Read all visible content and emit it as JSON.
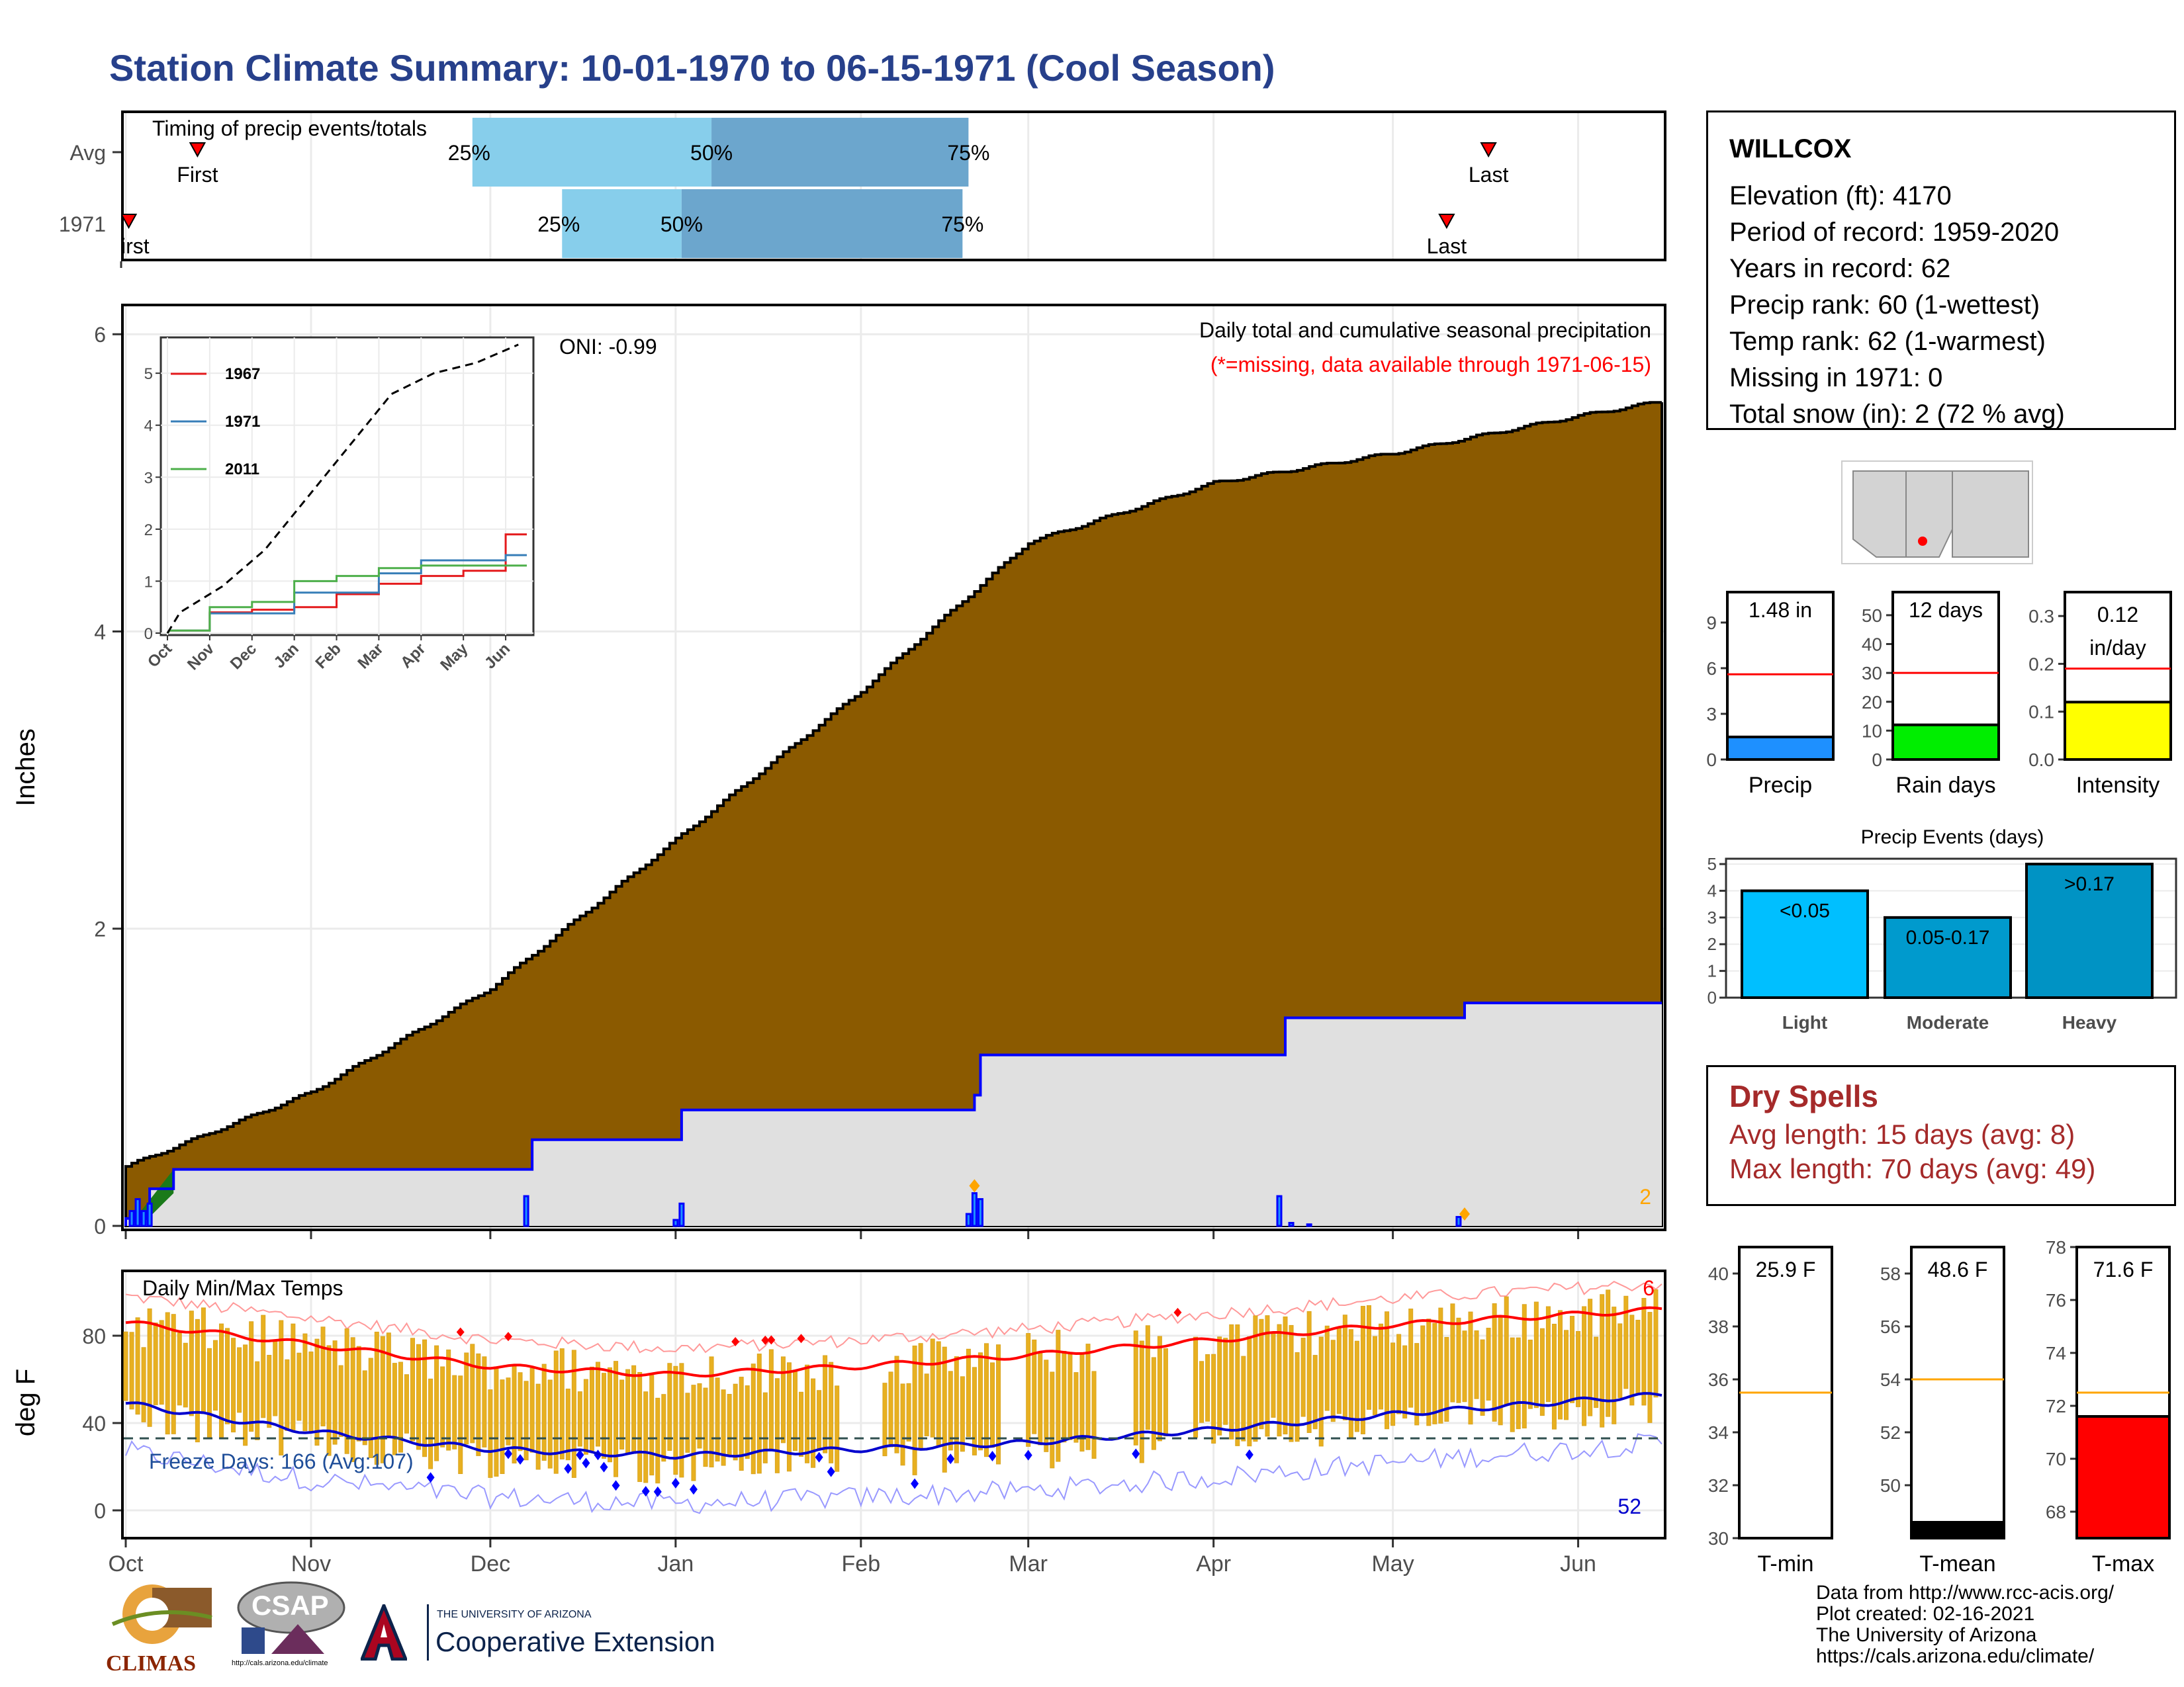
{
  "title": "Station Climate Summary: 10-01-1970 to 06-15-1971 (Cool Season)",
  "timing": {
    "label": "Timing of precip events/totals",
    "rows": [
      {
        "name": "Avg",
        "first_label": "First",
        "last_label": "Last",
        "p25": "25%",
        "p50": "50%",
        "p75": "75%"
      },
      {
        "name": "1971",
        "first_label": "First",
        "last_label": "Last",
        "p25": "25%",
        "p50": "50%",
        "p75": "75%"
      }
    ]
  },
  "precip_panel": {
    "ylabel": "Inches",
    "yticks": [
      "0",
      "2",
      "4",
      "6"
    ],
    "legend_line1": "Daily total and cumulative seasonal precipitation",
    "legend_line2": "(*=missing, data available through 1971-06-15)",
    "snow_total": "2",
    "oni": "ONI: -0.99",
    "colors": {
      "cumavg": "#8b5a00",
      "cum": "#e0e0e0",
      "line": "#0000ff",
      "early": "#1a7a1a"
    }
  },
  "inset": {
    "yticks": [
      "0",
      "1",
      "2",
      "3",
      "4",
      "5"
    ],
    "xticks": [
      "Oct",
      "Nov",
      "Dec",
      "Jan",
      "Feb",
      "Mar",
      "Apr",
      "May",
      "Jun"
    ],
    "legend": [
      {
        "name": "1967",
        "color": "#e41a1c"
      },
      {
        "name": "1971",
        "color": "#377eb8"
      },
      {
        "name": "2011",
        "color": "#4daf4a"
      }
    ]
  },
  "temp_panel": {
    "ylabel": "deg F",
    "yticks": [
      "0",
      "40",
      "80"
    ],
    "label": "Daily Min/Max Temps",
    "freeze_text": "Freeze Days: 166 (Avg:107)",
    "hot_count": "6",
    "cold_count": "52"
  },
  "month_labels": [
    "Oct",
    "Nov",
    "Dec",
    "Jan",
    "Feb",
    "Mar",
    "Apr",
    "May",
    "Jun"
  ],
  "station": {
    "name": "WILLCOX",
    "lines": [
      "Elevation (ft): 4170",
      "Period of record: 1959-2020",
      "Years in record: 62",
      "Precip rank: 60 (1-wettest)",
      "Temp rank: 62 (1-warmest)",
      "Missing in 1971: 0",
      "Total snow (in): 2 (72 % avg)"
    ]
  },
  "mini_bars": [
    {
      "label": "Precip",
      "value_text": "1.48 in",
      "value": 1.48,
      "avg": 5.6,
      "ymax": 11,
      "ticks": [
        "0",
        "3",
        "6",
        "9"
      ],
      "tickvals": [
        0,
        3,
        6,
        9
      ],
      "color": "#1e90ff"
    },
    {
      "label": "Rain days",
      "value_text": "12 days",
      "value": 12,
      "avg": 30,
      "ymax": 58,
      "ticks": [
        "0",
        "10",
        "20",
        "30",
        "40",
        "50"
      ],
      "tickvals": [
        0,
        10,
        20,
        30,
        40,
        50
      ],
      "color": "#00ee00"
    },
    {
      "label": "Intensity",
      "value_text": "0.12 in/day",
      "value_text_1": "0.12",
      "value_text_2": "in/day",
      "value": 0.12,
      "avg": 0.19,
      "ymax": 0.35,
      "ticks": [
        "0.0",
        "0.1",
        "0.2",
        "0.3"
      ],
      "tickvals": [
        0,
        0.1,
        0.2,
        0.3
      ],
      "color": "#ffff00"
    }
  ],
  "events": {
    "title": "Precip Events (days)",
    "ticks": [
      "0",
      "1",
      "2",
      "3",
      "4",
      "5"
    ],
    "bars": [
      {
        "category": "Light",
        "label": "<0.05",
        "value": 4,
        "color": "#00bfff"
      },
      {
        "category": "Moderate",
        "label": "0.05-0.17",
        "value": 3,
        "color": "#009acd"
      },
      {
        "category": "Heavy",
        "label": ">0.17",
        "value": 5,
        "color": "#0093c4"
      }
    ]
  },
  "dry_spells": {
    "title": "Dry Spells",
    "avg": "Avg length: 15 days (avg: 8)",
    "max": "Max length: 70 days (avg: 49)"
  },
  "temp_bars": [
    {
      "label": "T-min",
      "value_text": "25.9 F",
      "value": 25.9,
      "avg": 35.5,
      "ymin": 30,
      "ymax": 41,
      "ticks": [
        "30",
        "32",
        "34",
        "36",
        "38",
        "40"
      ],
      "tickvals": [
        30,
        32,
        34,
        36,
        38,
        40
      ],
      "color": "#ffffff"
    },
    {
      "label": "T-mean",
      "value_text": "48.6 F",
      "value": 48.6,
      "avg": 54.0,
      "ymin": 48,
      "ymax": 59,
      "ticks": [
        "50",
        "52",
        "54",
        "56",
        "58"
      ],
      "tickvals": [
        50,
        52,
        54,
        56,
        58
      ],
      "color": "#000000"
    },
    {
      "label": "T-max",
      "value_text": "71.6 F",
      "value": 71.6,
      "avg": 72.5,
      "ymin": 67,
      "ymax": 78,
      "ticks": [
        "68",
        "70",
        "72",
        "74",
        "76",
        "78"
      ],
      "tickvals": [
        68,
        70,
        72,
        74,
        76,
        78
      ],
      "color": "#ff0000"
    }
  ],
  "credits": [
    "Data from http://www.rcc-acis.org/",
    "Plot created: 02-16-2021",
    "The University of Arizona",
    "https://cals.arizona.edu/climate/"
  ],
  "logos": {
    "climas": "CLIMAS",
    "csap": "CSAP",
    "csap_url": "http://cals.arizona.edu/climate",
    "ua_small": "THE UNIVERSITY OF ARIZONA",
    "coop": "Cooperative Extension"
  },
  "chart_data": [
    {
      "type": "area",
      "title": "Daily total and cumulative seasonal precipitation",
      "ylabel": "Inches",
      "ylim": [
        0,
        6
      ],
      "x": [
        "Oct 1",
        "Nov 1",
        "Dec 1",
        "Jan 1",
        "Feb 1",
        "Mar 1",
        "Apr 1",
        "May 1",
        "Jun 1",
        "Jun 15"
      ],
      "series": [
        {
          "name": "avg cumulative",
          "values": [
            0.4,
            0.9,
            1.6,
            2.6,
            3.6,
            4.6,
            5.0,
            5.2,
            5.45,
            5.55
          ]
        },
        {
          "name": "1971 cumulative",
          "values": [
            0.05,
            0.38,
            0.38,
            0.78,
            0.78,
            1.15,
            1.4,
            1.4,
            1.5,
            1.5
          ]
        }
      ]
    },
    {
      "type": "line",
      "title": "inset cumulative precipitation",
      "x": [
        "Oct",
        "Nov",
        "Dec",
        "Jan",
        "Feb",
        "Mar",
        "Apr",
        "May",
        "Jun"
      ],
      "ylim": [
        0,
        5.5
      ],
      "series": [
        {
          "name": "1967",
          "values": [
            0.05,
            0.4,
            0.45,
            0.5,
            0.75,
            0.95,
            1.1,
            1.2,
            1.9
          ]
        },
        {
          "name": "1971",
          "values": [
            0.05,
            0.38,
            0.38,
            0.78,
            0.78,
            1.15,
            1.4,
            1.4,
            1.5
          ]
        },
        {
          "name": "2011",
          "values": [
            0.05,
            0.5,
            0.6,
            1.0,
            1.1,
            1.25,
            1.3,
            1.3,
            1.3
          ]
        },
        {
          "name": "avg",
          "values": [
            0.4,
            0.9,
            1.6,
            2.6,
            3.6,
            4.6,
            5.0,
            5.2,
            5.55
          ]
        }
      ]
    },
    {
      "type": "bar",
      "title": "Daily Min/Max Temps",
      "ylabel": "deg F",
      "ylim": [
        -10,
        100
      ],
      "x": [
        "Oct",
        "Nov",
        "Dec",
        "Jan",
        "Feb",
        "Mar",
        "Apr",
        "May",
        "Jun"
      ],
      "series": [
        {
          "name": "avg max",
          "values": [
            86,
            76,
            66,
            62,
            66,
            71,
            78,
            85,
            92
          ]
        },
        {
          "name": "avg min",
          "values": [
            49,
            36,
            28,
            25,
            28,
            31,
            37,
            44,
            53
          ]
        }
      ],
      "freeze_line": 33
    }
  ]
}
